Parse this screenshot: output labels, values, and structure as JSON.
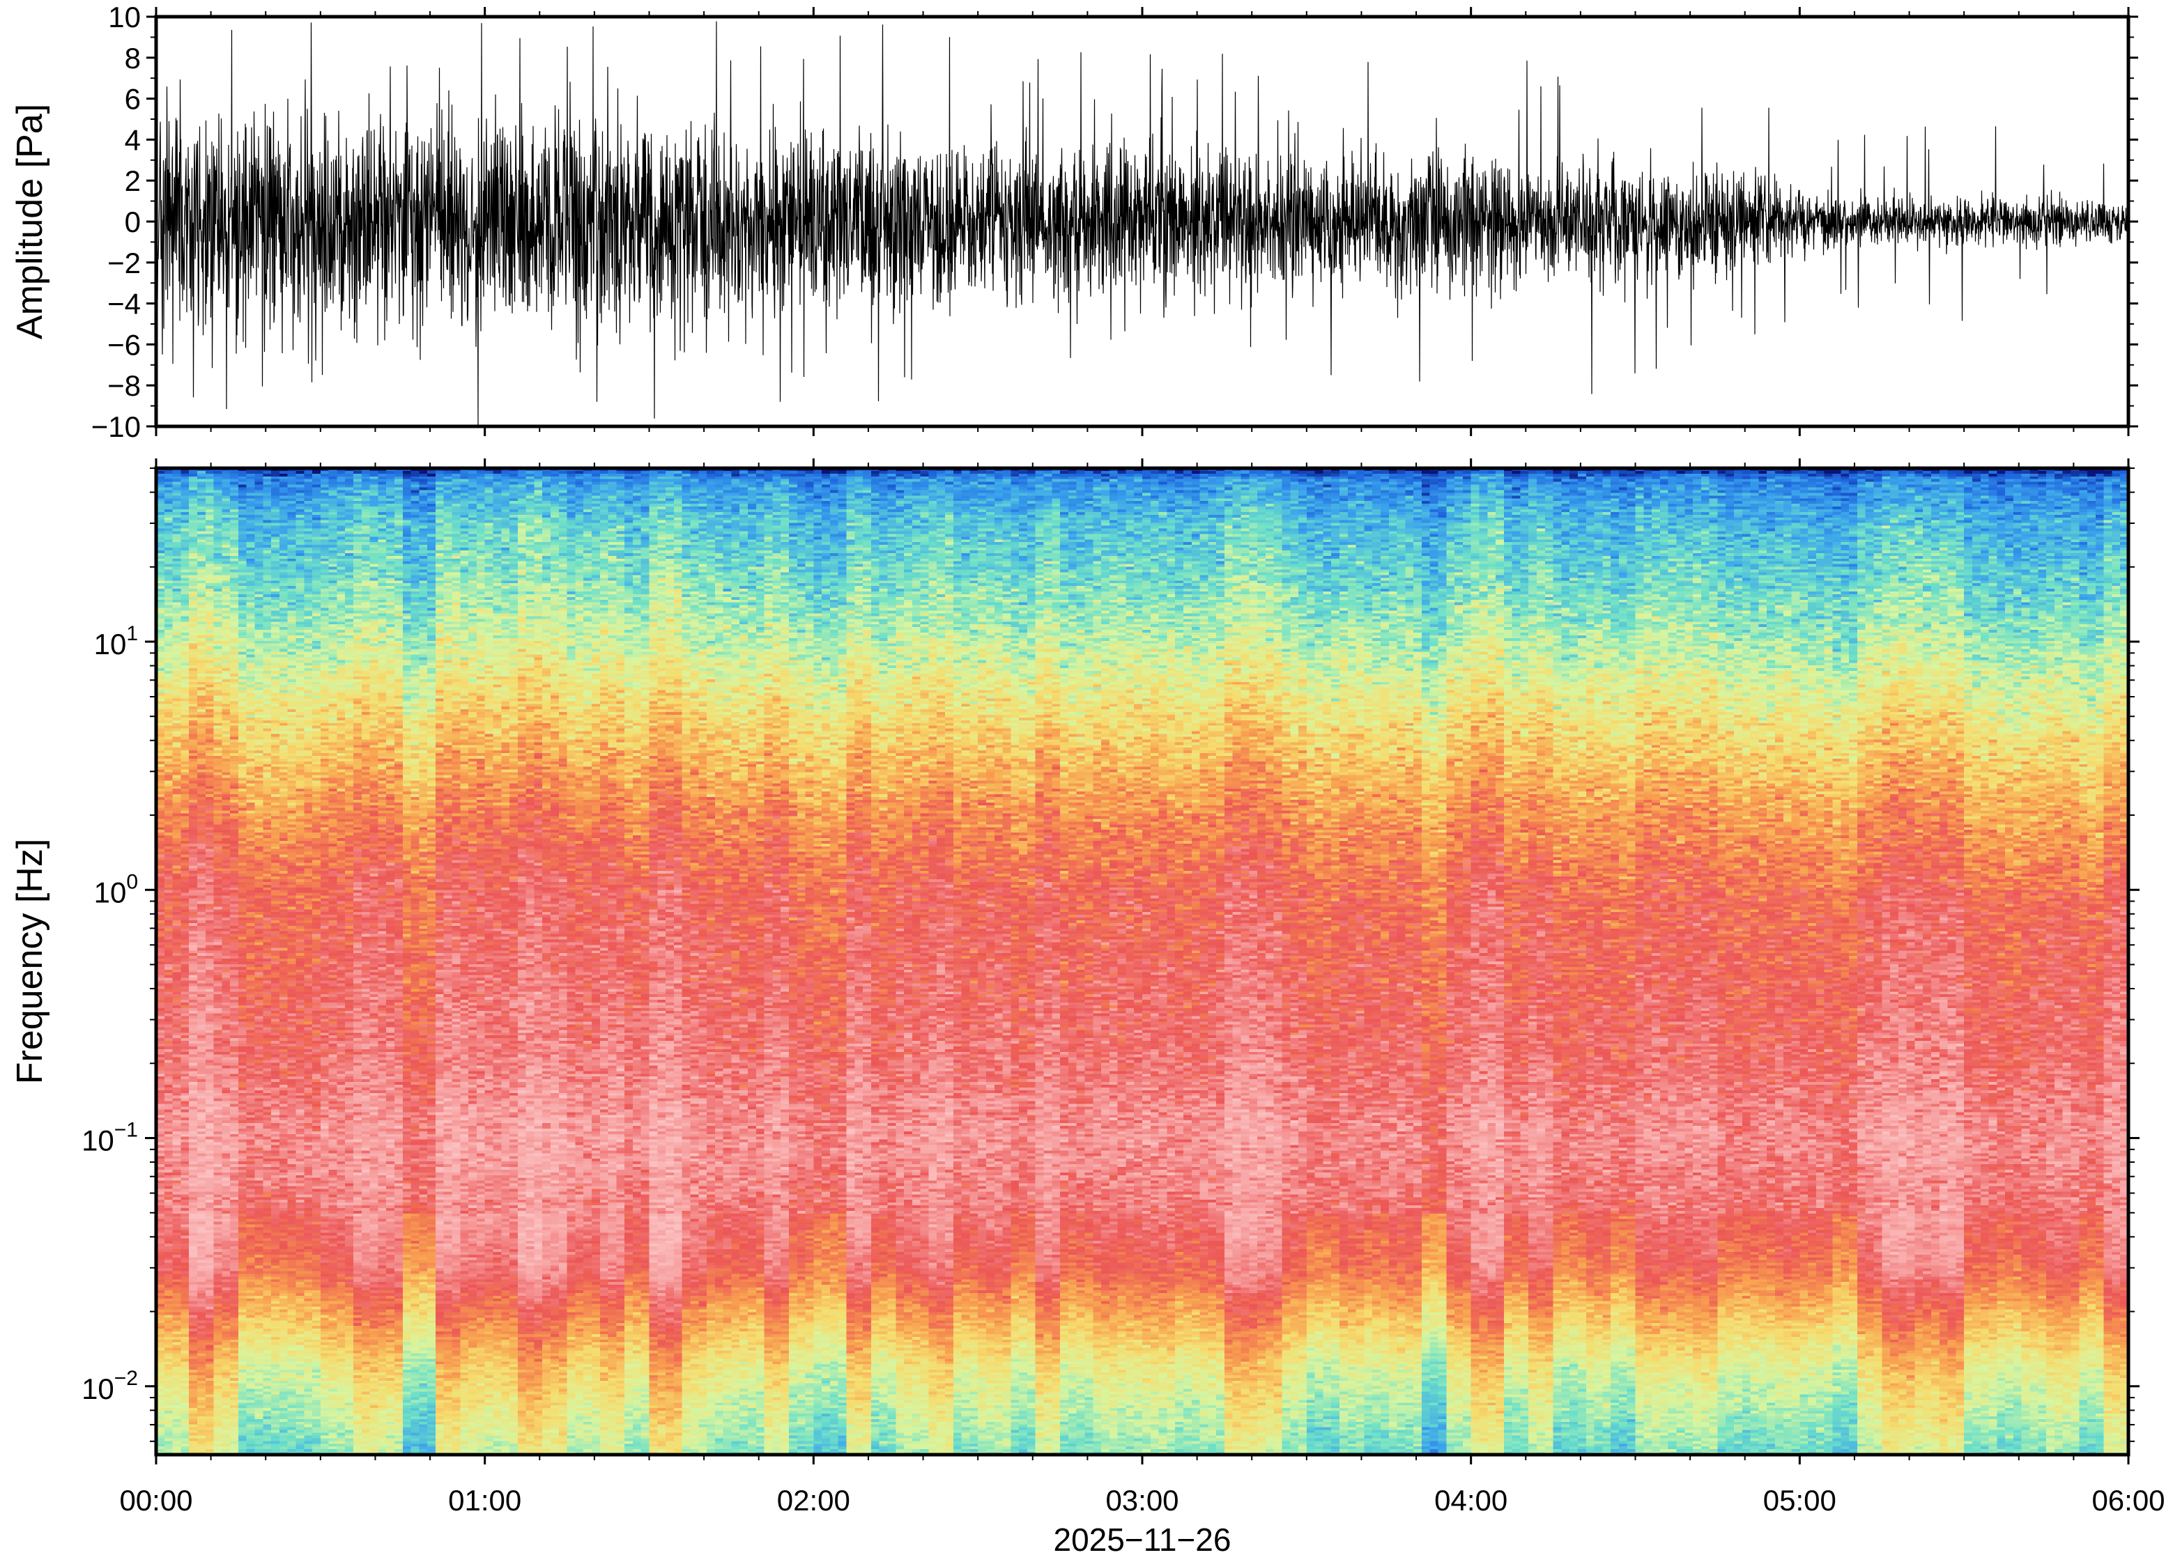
{
  "chart_data": [
    {
      "type": "line",
      "ylabel": "Amplitude [Pa]",
      "ylim": [
        -10,
        10
      ],
      "y_ticks": [
        -10,
        -8,
        -6,
        -4,
        -2,
        0,
        2,
        4,
        6,
        8,
        10
      ],
      "y_tick_labels": [
        "−10",
        "−8",
        "−6",
        "−4",
        "−2",
        "0",
        "2",
        "4",
        "6",
        "8",
        "10"
      ],
      "x_range_hours": [
        0,
        6
      ],
      "envelope_pa": {
        "hour": [
          0,
          0.5,
          1,
          1.5,
          2,
          2.5,
          3,
          3.5,
          4,
          4.5,
          4.9,
          5.05,
          5.5,
          6
        ],
        "typical": [
          6.2,
          6.5,
          6.0,
          6.2,
          5.3,
          4.6,
          4.4,
          4.0,
          3.6,
          3.3,
          2.8,
          1.4,
          1.4,
          1.2
        ],
        "peak": [
          10,
          10,
          10,
          10,
          9.8,
          9.5,
          8.5,
          8.0,
          8.5,
          9.0,
          6.0,
          4.0,
          5.0,
          3.5
        ]
      }
    },
    {
      "type": "heatmap",
      "ylabel": "Frequency [Hz]",
      "yscale": "log",
      "ylim_hz": [
        0.0053,
        50
      ],
      "y_ticks_hz": [
        0.01,
        0.1,
        1,
        10
      ],
      "y_tick_labels": [
        {
          "base": "10",
          "exp": "−2"
        },
        {
          "base": "10",
          "exp": "−1"
        },
        {
          "base": "10",
          "exp": "0"
        },
        {
          "base": "10",
          "exp": "1"
        }
      ],
      "x_ticks_hours": [
        0,
        1,
        2,
        3,
        4,
        5,
        6
      ],
      "x_tick_labels": [
        "00:00",
        "01:00",
        "02:00",
        "03:00",
        "04:00",
        "05:00",
        "06:00"
      ],
      "xlabel": "2025−11−26",
      "colormap": {
        "stops": [
          {
            "v": 0.0,
            "c": "#0a1478"
          },
          {
            "v": 0.1,
            "c": "#1e64dc"
          },
          {
            "v": 0.22,
            "c": "#3aa2ec"
          },
          {
            "v": 0.34,
            "c": "#6ee0c8"
          },
          {
            "v": 0.45,
            "c": "#d8f5a0"
          },
          {
            "v": 0.56,
            "c": "#f6dc6e"
          },
          {
            "v": 0.66,
            "c": "#f8a050"
          },
          {
            "v": 0.78,
            "c": "#ec5656"
          },
          {
            "v": 0.9,
            "c": "#f7a0a0"
          },
          {
            "v": 1.0,
            "c": "#fbc0c0"
          }
        ]
      },
      "level_profile": {
        "freq_hz": [
          50,
          45,
          30,
          20,
          10,
          5,
          2,
          1,
          0.5,
          0.2,
          0.1,
          0.05,
          0.03,
          0.02,
          0.012,
          0.0053
        ],
        "level": [
          0.05,
          0.2,
          0.3,
          0.34,
          0.44,
          0.56,
          0.7,
          0.78,
          0.8,
          0.84,
          0.9,
          0.85,
          0.8,
          0.68,
          0.54,
          0.4
        ]
      }
    }
  ]
}
